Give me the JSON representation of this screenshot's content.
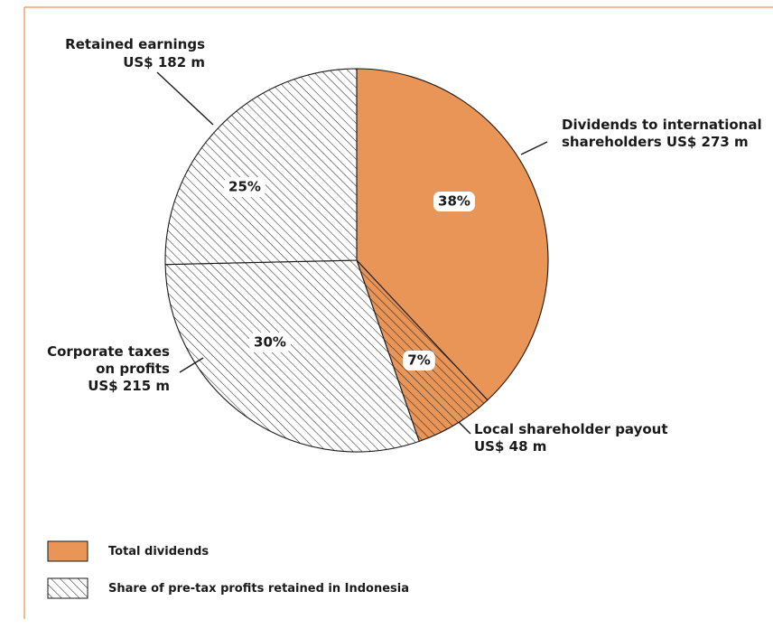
{
  "chart_data": {
    "type": "pie",
    "slices": [
      {
        "key": "intl",
        "label_lines": [
          "Dividends to international",
          "shareholders US$ 273 m"
        ],
        "pct_label": "38%",
        "value": 273,
        "fill": "dividend"
      },
      {
        "key": "local",
        "label_lines": [
          "Local shareholder payout",
          "US$ 48 m"
        ],
        "pct_label": "7%",
        "value": 48,
        "fill": "dividend-hatch"
      },
      {
        "key": "tax",
        "label_lines": [
          "Corporate taxes",
          "on profits",
          "US$ 215 m"
        ],
        "pct_label": "30%",
        "value": 215,
        "fill": "hatch"
      },
      {
        "key": "retained",
        "label_lines": [
          "Retained earnings",
          "US$ 182 m"
        ],
        "pct_label": "25%",
        "value": 182,
        "fill": "hatch"
      }
    ],
    "legend": [
      {
        "label": "Total dividends",
        "swatch": "dividend"
      },
      {
        "label": "Share of pre-tax profits retained in Indonesia",
        "swatch": "hatch"
      }
    ],
    "legend_position": "bottom-left",
    "colors": {
      "dividend": "#e99558",
      "border": "#e99558",
      "outline": "#1a1a1a"
    }
  }
}
